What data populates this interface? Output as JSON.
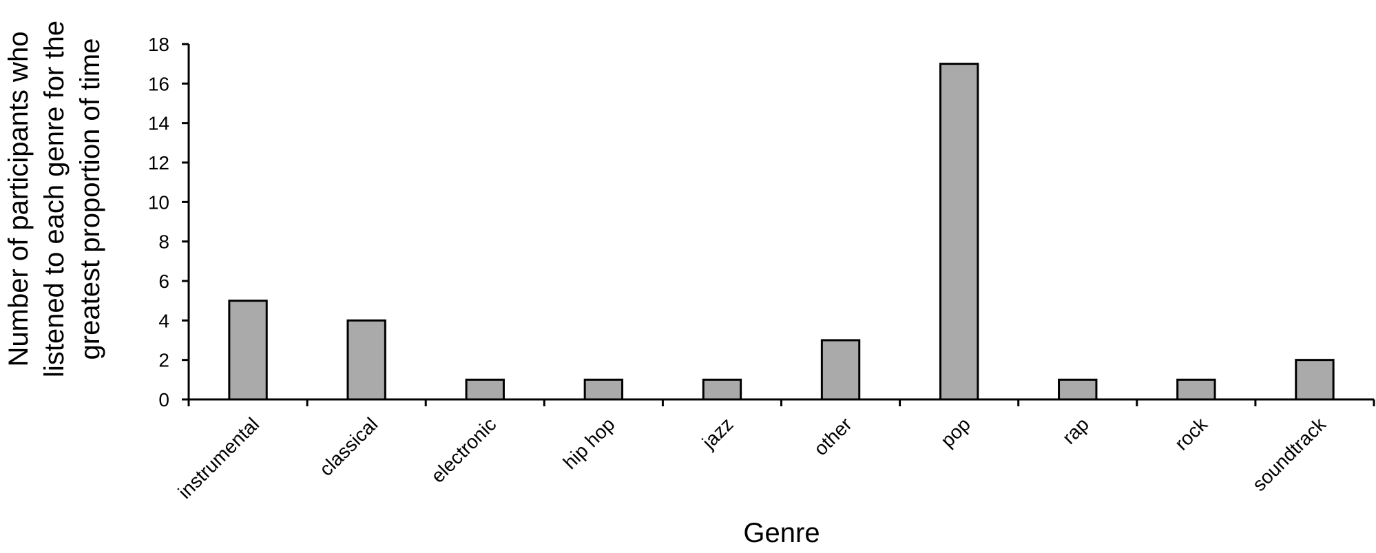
{
  "chart_data": {
    "type": "bar",
    "categories": [
      "instrumental",
      "classical",
      "electronic",
      "hip hop",
      "jazz",
      "other",
      "pop",
      "rap",
      "rock",
      "soundtrack"
    ],
    "values": [
      5,
      4,
      1,
      1,
      1,
      3,
      17,
      1,
      1,
      2
    ],
    "xlabel": "Genre",
    "ylabel_lines": [
      "Number of participants who",
      "listened to each genre for the",
      "greatest proportion of time"
    ],
    "ylim": [
      0,
      18
    ],
    "yticks": [
      0,
      2,
      4,
      6,
      8,
      10,
      12,
      14,
      16,
      18
    ],
    "bar_color": "#aaaaaa",
    "grid": false,
    "legend": "none"
  }
}
